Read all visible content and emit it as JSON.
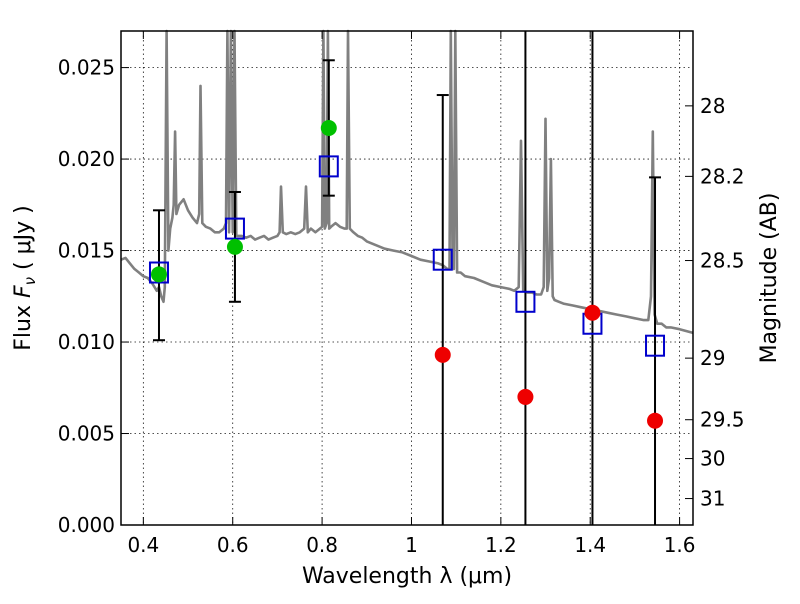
{
  "chart_data": {
    "type": "scatter",
    "xlabel": "Wavelength  λ (μm)",
    "ylabel_prefix": "Flux  ",
    "ylabel_symbol": "F",
    "ylabel_sub": "ν",
    "ylabel_suffix": "  ( μJy )",
    "y2label": "Magnitude (AB)",
    "xlim": [
      0.35,
      1.63
    ],
    "ylim": [
      0.0,
      0.027
    ],
    "grid": true,
    "x_ticks": [
      {
        "value": 0.4,
        "label": "0.4"
      },
      {
        "value": 0.6,
        "label": "0.6"
      },
      {
        "value": 0.8,
        "label": "0.8"
      },
      {
        "value": 1.0,
        "label": "1"
      },
      {
        "value": 1.2,
        "label": "1.2"
      },
      {
        "value": 1.4,
        "label": "1.4"
      },
      {
        "value": 1.6,
        "label": "1.6"
      }
    ],
    "y_ticks": [
      {
        "value": 0.0,
        "label": "0.000"
      },
      {
        "value": 0.005,
        "label": "0.005"
      },
      {
        "value": 0.01,
        "label": "0.010"
      },
      {
        "value": 0.015,
        "label": "0.015"
      },
      {
        "value": 0.02,
        "label": "0.020"
      },
      {
        "value": 0.025,
        "label": "0.025"
      }
    ],
    "mag_ticks": [
      {
        "mag": 28,
        "label": "28"
      },
      {
        "mag": 28.2,
        "label": "28.2"
      },
      {
        "mag": 28.5,
        "label": "28.5"
      },
      {
        "mag": 29,
        "label": "29"
      },
      {
        "mag": 29.5,
        "label": "29.5"
      },
      {
        "mag": 30,
        "label": "30"
      },
      {
        "mag": 31,
        "label": "31"
      }
    ],
    "colors": {
      "spectrum": "#808080",
      "model_box": "#0000cc",
      "detection": "#00c000",
      "upper_limit": "#ee0000",
      "errorbar": "#000000"
    },
    "spectrum": [
      [
        0.35,
        0.0145
      ],
      [
        0.36,
        0.0146
      ],
      [
        0.37,
        0.0143
      ],
      [
        0.38,
        0.014
      ],
      [
        0.39,
        0.0138
      ],
      [
        0.4,
        0.0136
      ],
      [
        0.41,
        0.0135
      ],
      [
        0.42,
        0.0132
      ],
      [
        0.43,
        0.0128
      ],
      [
        0.435,
        0.013
      ],
      [
        0.44,
        0.0125
      ],
      [
        0.445,
        0.0122
      ],
      [
        0.448,
        0.013
      ],
      [
        0.452,
        0.027
      ],
      [
        0.456,
        0.015
      ],
      [
        0.46,
        0.0162
      ],
      [
        0.465,
        0.0168
      ],
      [
        0.468,
        0.0175
      ],
      [
        0.471,
        0.0215
      ],
      [
        0.474,
        0.017
      ],
      [
        0.48,
        0.0175
      ],
      [
        0.49,
        0.0178
      ],
      [
        0.5,
        0.0172
      ],
      [
        0.51,
        0.0168
      ],
      [
        0.52,
        0.0165
      ],
      [
        0.525,
        0.017
      ],
      [
        0.528,
        0.024
      ],
      [
        0.532,
        0.0165
      ],
      [
        0.54,
        0.0163
      ],
      [
        0.55,
        0.0162
      ],
      [
        0.56,
        0.016
      ],
      [
        0.57,
        0.016
      ],
      [
        0.58,
        0.0162
      ],
      [
        0.585,
        0.0165
      ],
      [
        0.588,
        0.027
      ],
      [
        0.592,
        0.016
      ],
      [
        0.596,
        0.027
      ],
      [
        0.6,
        0.016
      ],
      [
        0.604,
        0.027
      ],
      [
        0.608,
        0.0158
      ],
      [
        0.612,
        0.0158
      ],
      [
        0.62,
        0.0158
      ],
      [
        0.63,
        0.0157
      ],
      [
        0.64,
        0.0158
      ],
      [
        0.65,
        0.0156
      ],
      [
        0.66,
        0.0157
      ],
      [
        0.67,
        0.0158
      ],
      [
        0.68,
        0.0156
      ],
      [
        0.69,
        0.0157
      ],
      [
        0.7,
        0.0158
      ],
      [
        0.705,
        0.016
      ],
      [
        0.708,
        0.0185
      ],
      [
        0.712,
        0.016
      ],
      [
        0.72,
        0.0159
      ],
      [
        0.73,
        0.016
      ],
      [
        0.74,
        0.0159
      ],
      [
        0.75,
        0.016
      ],
      [
        0.76,
        0.0162
      ],
      [
        0.764,
        0.0185
      ],
      [
        0.768,
        0.016
      ],
      [
        0.775,
        0.0162
      ],
      [
        0.785,
        0.016
      ],
      [
        0.795,
        0.0162
      ],
      [
        0.8,
        0.0163
      ],
      [
        0.803,
        0.027
      ],
      [
        0.806,
        0.0162
      ],
      [
        0.81,
        0.0165
      ],
      [
        0.813,
        0.027
      ],
      [
        0.816,
        0.0162
      ],
      [
        0.82,
        0.0163
      ],
      [
        0.83,
        0.0165
      ],
      [
        0.84,
        0.0163
      ],
      [
        0.85,
        0.0162
      ],
      [
        0.855,
        0.0162
      ],
      [
        0.858,
        0.027
      ],
      [
        0.862,
        0.0162
      ],
      [
        0.87,
        0.016
      ],
      [
        0.88,
        0.0158
      ],
      [
        0.89,
        0.0157
      ],
      [
        0.9,
        0.0155
      ],
      [
        0.92,
        0.0153
      ],
      [
        0.94,
        0.0151
      ],
      [
        0.96,
        0.015
      ],
      [
        0.98,
        0.0149
      ],
      [
        1.0,
        0.0147
      ],
      [
        1.02,
        0.0145
      ],
      [
        1.04,
        0.0144
      ],
      [
        1.06,
        0.0143
      ],
      [
        1.07,
        0.0142
      ],
      [
        1.08,
        0.014
      ],
      [
        1.085,
        0.014
      ],
      [
        1.088,
        0.027
      ],
      [
        1.092,
        0.014
      ],
      [
        1.095,
        0.014
      ],
      [
        1.098,
        0.027
      ],
      [
        1.102,
        0.0138
      ],
      [
        1.11,
        0.0138
      ],
      [
        1.12,
        0.0136
      ],
      [
        1.14,
        0.0135
      ],
      [
        1.16,
        0.0133
      ],
      [
        1.18,
        0.0131
      ],
      [
        1.2,
        0.013
      ],
      [
        1.22,
        0.0129
      ],
      [
        1.23,
        0.0128
      ],
      [
        1.24,
        0.013
      ],
      [
        1.245,
        0.021
      ],
      [
        1.25,
        0.0128
      ],
      [
        1.26,
        0.0127
      ],
      [
        1.27,
        0.0127
      ],
      [
        1.28,
        0.0126
      ],
      [
        1.29,
        0.0126
      ],
      [
        1.296,
        0.013
      ],
      [
        1.3,
        0.0222
      ],
      [
        1.304,
        0.0128
      ],
      [
        1.308,
        0.0135
      ],
      [
        1.312,
        0.02
      ],
      [
        1.316,
        0.0125
      ],
      [
        1.32,
        0.0123
      ],
      [
        1.33,
        0.0122
      ],
      [
        1.34,
        0.0121
      ],
      [
        1.36,
        0.012
      ],
      [
        1.38,
        0.0119
      ],
      [
        1.4,
        0.0118
      ],
      [
        1.42,
        0.0117
      ],
      [
        1.44,
        0.0116
      ],
      [
        1.46,
        0.0115
      ],
      [
        1.48,
        0.0114
      ],
      [
        1.5,
        0.0113
      ],
      [
        1.52,
        0.0112
      ],
      [
        1.53,
        0.0112
      ],
      [
        1.536,
        0.0125
      ],
      [
        1.54,
        0.0215
      ],
      [
        1.544,
        0.0115
      ],
      [
        1.55,
        0.011
      ],
      [
        1.56,
        0.011
      ],
      [
        1.57,
        0.0108
      ],
      [
        1.58,
        0.0108
      ],
      [
        1.6,
        0.0107
      ],
      [
        1.63,
        0.0105
      ]
    ],
    "model_boxes": [
      {
        "x": 0.435,
        "y": 0.0138
      },
      {
        "x": 0.605,
        "y": 0.0162
      },
      {
        "x": 0.815,
        "y": 0.0196
      },
      {
        "x": 1.07,
        "y": 0.0145
      },
      {
        "x": 1.255,
        "y": 0.0122
      },
      {
        "x": 1.405,
        "y": 0.011
      },
      {
        "x": 1.545,
        "y": 0.0098
      }
    ],
    "detections": [
      {
        "x": 0.435,
        "y": 0.0137,
        "yerr_low": 0.0101,
        "yerr_high": 0.0172
      },
      {
        "x": 0.605,
        "y": 0.0152,
        "yerr_low": 0.0122,
        "yerr_high": 0.0182
      },
      {
        "x": 0.815,
        "y": 0.0217,
        "yerr_low": 0.018,
        "yerr_high": 0.0254
      }
    ],
    "upper_limits": [
      {
        "x": 1.07,
        "y": 0.0093,
        "yerr_low": 0.0,
        "yerr_high": 0.0235
      },
      {
        "x": 1.255,
        "y": 0.007,
        "yerr_low": 0.0,
        "yerr_high": 0.027
      },
      {
        "x": 1.405,
        "y": 0.0116,
        "yerr_low": 0.0,
        "yerr_high": 0.027
      },
      {
        "x": 1.545,
        "y": 0.0057,
        "yerr_low": 0.0,
        "yerr_high": 0.019
      }
    ]
  }
}
